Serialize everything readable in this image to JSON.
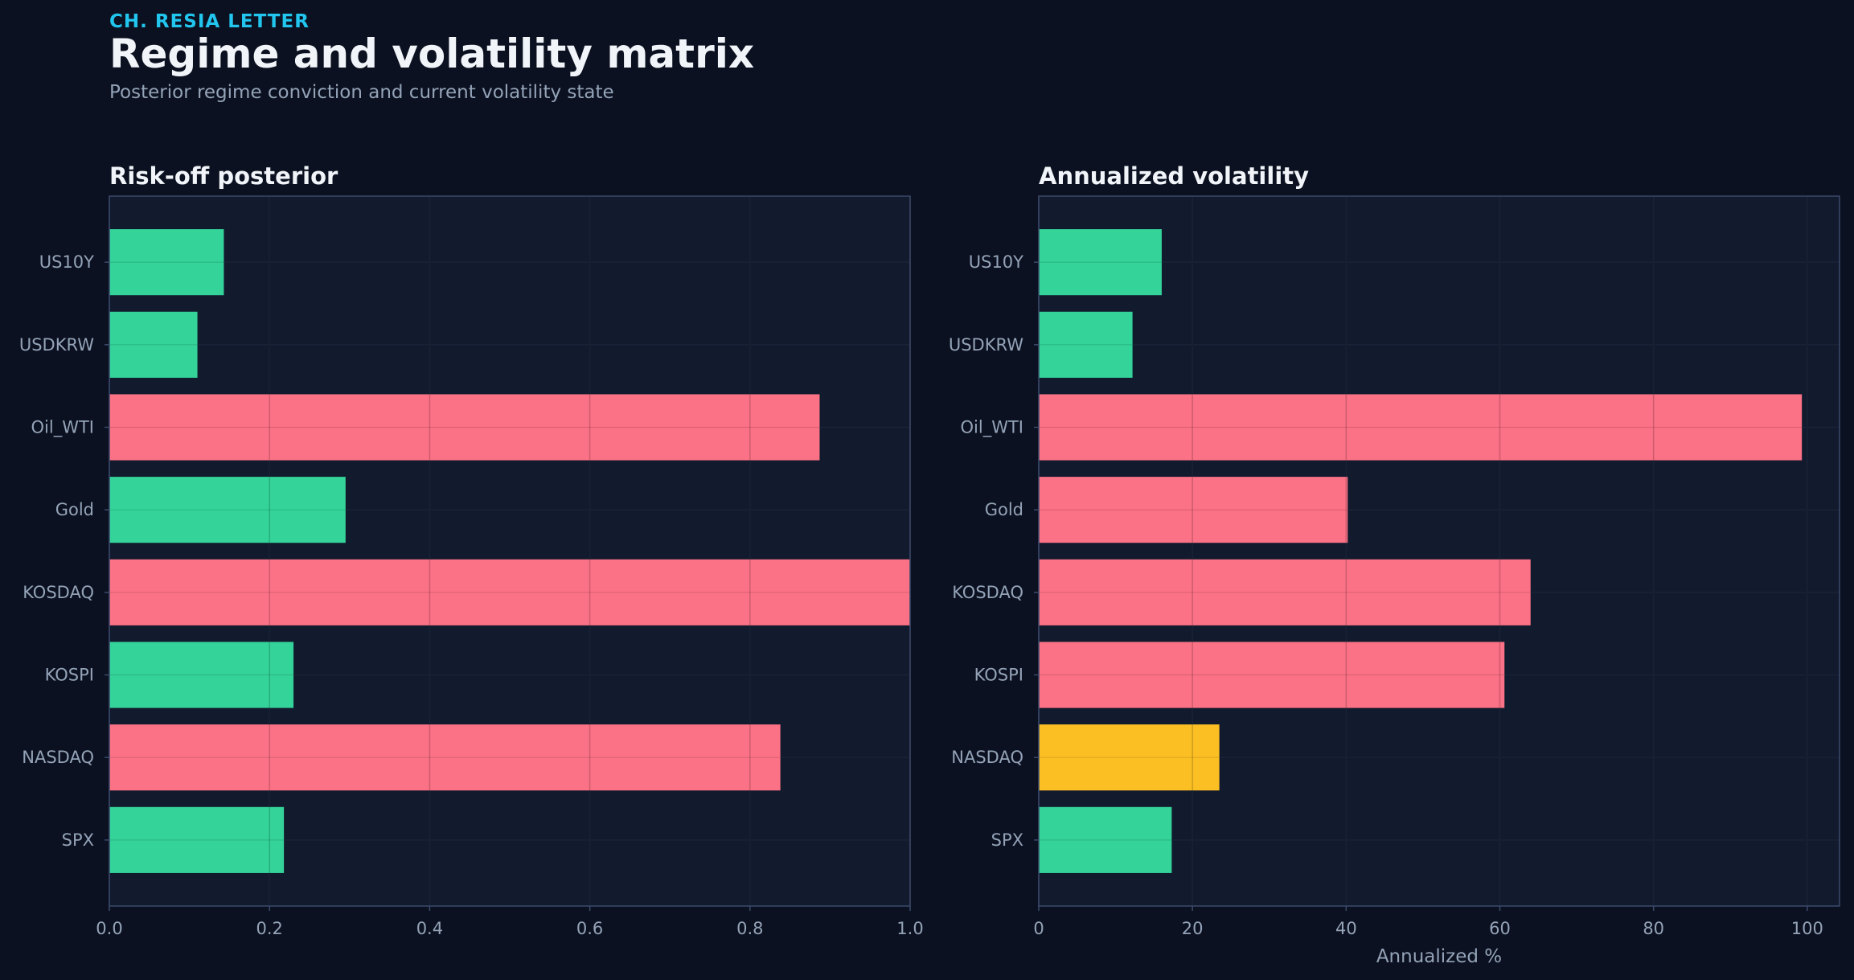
{
  "header": {
    "kicker": "CH. RESIA LETTER",
    "title": "Regime and volatility matrix",
    "subtitle": "Posterior regime conviction and current volatility state"
  },
  "colors": {
    "background": "#0b1120",
    "panel": "#121a2e",
    "green": "#34d399",
    "red": "#fb7185",
    "amber": "#fbbf24",
    "grid": "#1f2a40",
    "axis": "#3b4a6b",
    "tick": "#94a3b8",
    "title_text": "#f1f5f9"
  },
  "chart_data": [
    {
      "type": "bar",
      "orientation": "horizontal",
      "title": "Risk-off posterior",
      "xlabel": "",
      "ylabel": "",
      "categories": [
        "US10Y",
        "USDKRW",
        "Oil_WTI",
        "Gold",
        "KOSDAQ",
        "KOSPI",
        "NASDAQ",
        "SPX"
      ],
      "values": [
        0.143,
        0.11,
        0.887,
        0.295,
        1.0,
        0.23,
        0.838,
        0.218
      ],
      "bar_colors": [
        "green",
        "green",
        "red",
        "green",
        "red",
        "green",
        "red",
        "green"
      ],
      "xlim": [
        0,
        1.0
      ],
      "xticks": [
        0.0,
        0.2,
        0.4,
        0.6,
        0.8,
        1.0
      ],
      "xtick_labels": [
        "0.0",
        "0.2",
        "0.4",
        "0.6",
        "0.8",
        "1.0"
      ],
      "grid": true
    },
    {
      "type": "bar",
      "orientation": "horizontal",
      "title": "Annualized volatility",
      "xlabel": "Annualized %",
      "ylabel": "",
      "categories": [
        "US10Y",
        "USDKRW",
        "Oil_WTI",
        "Gold",
        "KOSDAQ",
        "KOSPI",
        "NASDAQ",
        "SPX"
      ],
      "values": [
        16,
        12.2,
        99.3,
        40.2,
        64,
        60.6,
        23.5,
        17.3
      ],
      "bar_colors": [
        "green",
        "green",
        "red",
        "red",
        "red",
        "red",
        "amber",
        "green"
      ],
      "xlim": [
        0,
        104.2
      ],
      "xticks": [
        0,
        20,
        40,
        60,
        80,
        100
      ],
      "xtick_labels": [
        "0",
        "20",
        "40",
        "60",
        "80",
        "100"
      ],
      "grid": true
    }
  ]
}
